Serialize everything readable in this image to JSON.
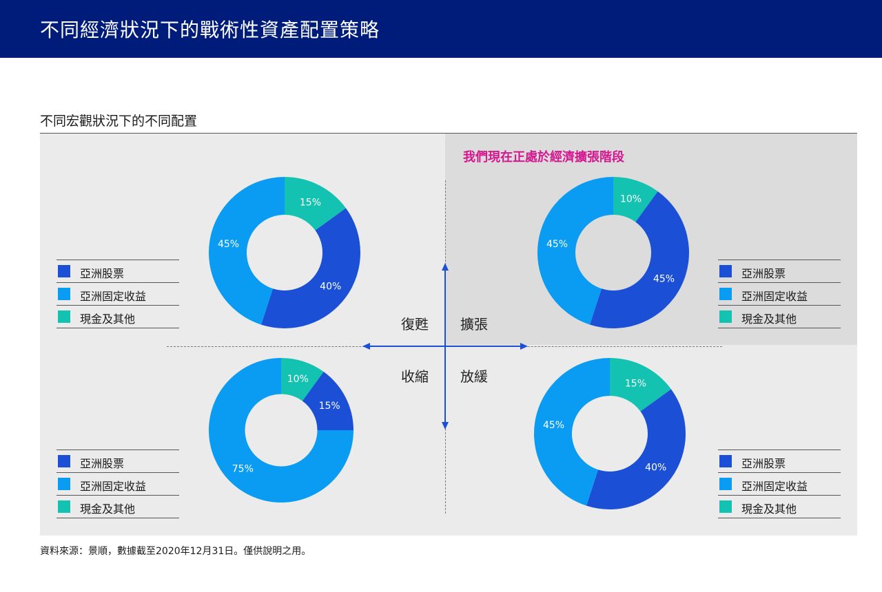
{
  "header": {
    "title": "不同經濟狀況下的戰術性資產配置策略"
  },
  "subtitle": "不同宏觀狀況下的不同配置",
  "highlight_title": "我們現在正處於經濟擴張階段",
  "quadrant_labels": {
    "recovery": "復甦",
    "expansion": "擴張",
    "contraction": "收縮",
    "slowdown": "放緩"
  },
  "colors": {
    "asia_equity": "#1a4fd6",
    "asia_fixed_income": "#0a9cf2",
    "cash_other": "#13c2b0",
    "accent": "#d4178f",
    "header": "#001c7a"
  },
  "legends": {
    "tl": [
      "亞洲股票",
      "亞洲固定收益",
      "現金及其他"
    ],
    "tr": [
      "亞洲股票",
      "亞洲固定收益",
      "現金及其他"
    ],
    "bl": [
      "亞洲股票",
      "亞洲固定收益",
      "現金及其他"
    ],
    "br": [
      "亞洲股票",
      "亞洲固定收益",
      "現金及其他"
    ]
  },
  "chart_data": [
    {
      "type": "pie",
      "quadrant": "復甦",
      "categories": [
        "亞洲股票",
        "亞洲固定收益",
        "現金及其他"
      ],
      "values": [
        40,
        45,
        15
      ],
      "labels": [
        "40%",
        "45%",
        "15%"
      ]
    },
    {
      "type": "pie",
      "quadrant": "擴張",
      "categories": [
        "亞洲股票",
        "亞洲固定收益",
        "現金及其他"
      ],
      "values": [
        45,
        45,
        10
      ],
      "labels": [
        "45%",
        "45%",
        "10%"
      ]
    },
    {
      "type": "pie",
      "quadrant": "收縮",
      "categories": [
        "亞洲股票",
        "亞洲固定收益",
        "現金及其他"
      ],
      "values": [
        15,
        75,
        10
      ],
      "labels": [
        "15%",
        "75%",
        "10%"
      ]
    },
    {
      "type": "pie",
      "quadrant": "放緩",
      "categories": [
        "亞洲股票",
        "亞洲固定收益",
        "現金及其他"
      ],
      "values": [
        40,
        45,
        15
      ],
      "labels": [
        "40%",
        "45%",
        "15%"
      ]
    }
  ],
  "footnote": "資料來源：景順，數據截至2020年12月31日。僅供說明之用。"
}
